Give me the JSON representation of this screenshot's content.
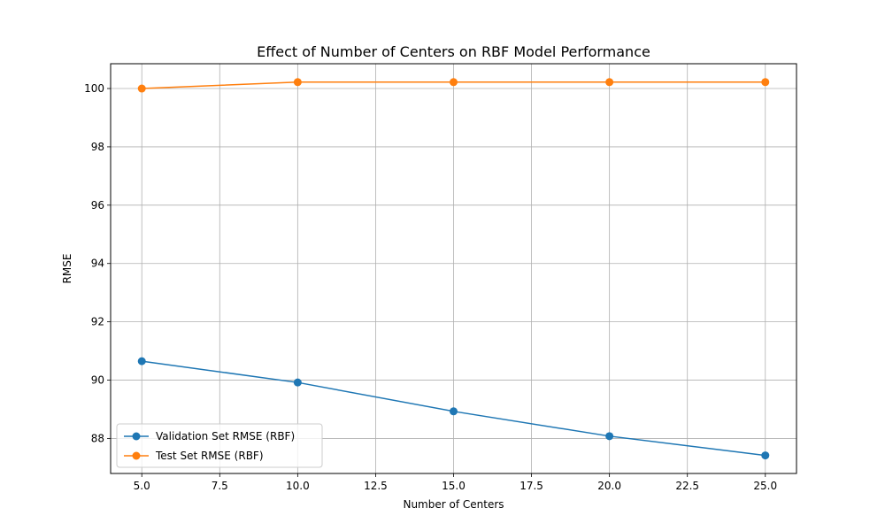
{
  "chart_data": {
    "type": "line",
    "title": "Effect of Number of Centers on RBF Model Performance",
    "xlabel": "Number of Centers",
    "ylabel": "RMSE",
    "x": [
      5,
      10,
      15,
      20,
      25
    ],
    "xlim": [
      4.0,
      26.0
    ],
    "ylim": [
      86.8,
      100.85
    ],
    "xticks": [
      5.0,
      7.5,
      10.0,
      12.5,
      15.0,
      17.5,
      20.0,
      22.5,
      25.0
    ],
    "xtick_labels": [
      "5.0",
      "7.5",
      "10.0",
      "12.5",
      "15.0",
      "17.5",
      "20.0",
      "22.5",
      "25.0"
    ],
    "yticks": [
      88,
      90,
      92,
      94,
      96,
      98,
      100
    ],
    "ytick_labels": [
      "88",
      "90",
      "92",
      "94",
      "96",
      "98",
      "100"
    ],
    "grid": true,
    "legend_position": "lower-left",
    "series": [
      {
        "name": "Validation Set RMSE (RBF)",
        "color": "#1f77b4",
        "marker": "circle",
        "values": [
          90.65,
          89.92,
          88.93,
          88.08,
          87.42
        ]
      },
      {
        "name": "Test Set RMSE (RBF)",
        "color": "#ff7f0e",
        "marker": "circle",
        "values": [
          100.0,
          100.22,
          100.22,
          100.22,
          100.22
        ]
      }
    ]
  }
}
